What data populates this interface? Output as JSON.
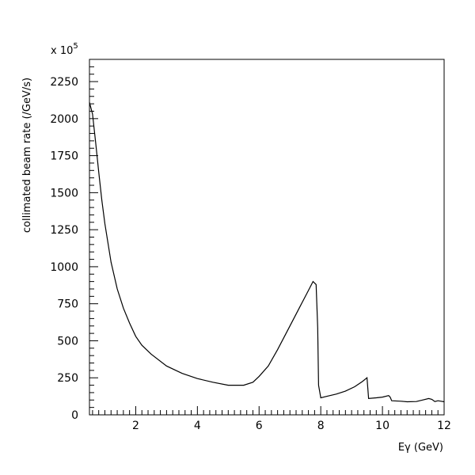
{
  "chart_data": {
    "type": "line",
    "title": "",
    "xlabel": "Eγ (GeV)",
    "ylabel": "collimated beam rate (/GeV/s)",
    "y_multiplier": "x 10",
    "y_multiplier_exp": "5",
    "xlim": [
      0.5,
      12
    ],
    "ylim": [
      0,
      2400
    ],
    "grid": false,
    "x_ticks": [
      {
        "value": 2,
        "label": "2"
      },
      {
        "value": 4,
        "label": "4"
      },
      {
        "value": 6,
        "label": "6"
      },
      {
        "value": 8,
        "label": "8"
      },
      {
        "value": 10,
        "label": "10"
      },
      {
        "value": 12,
        "label": "12"
      }
    ],
    "y_ticks": [
      {
        "value": 0,
        "label": "0"
      },
      {
        "value": 250,
        "label": "250"
      },
      {
        "value": 500,
        "label": "500"
      },
      {
        "value": 750,
        "label": "750"
      },
      {
        "value": 1000,
        "label": "1000"
      },
      {
        "value": 1250,
        "label": "1250"
      },
      {
        "value": 1500,
        "label": "1500"
      },
      {
        "value": 1750,
        "label": "1750"
      },
      {
        "value": 2000,
        "label": "2000"
      },
      {
        "value": 2250,
        "label": "2250"
      }
    ],
    "series": [
      {
        "points": [
          [
            0.5,
            2110
          ],
          [
            0.6,
            2030
          ],
          [
            0.7,
            1840
          ],
          [
            0.8,
            1640
          ],
          [
            0.9,
            1450
          ],
          [
            1.0,
            1290
          ],
          [
            1.2,
            1030
          ],
          [
            1.4,
            850
          ],
          [
            1.6,
            720
          ],
          [
            1.8,
            620
          ],
          [
            2.0,
            530
          ],
          [
            2.2,
            470
          ],
          [
            2.5,
            410
          ],
          [
            3.0,
            330
          ],
          [
            3.5,
            280
          ],
          [
            4.0,
            245
          ],
          [
            4.5,
            220
          ],
          [
            5.0,
            200
          ],
          [
            5.5,
            200
          ],
          [
            5.8,
            220
          ],
          [
            6.0,
            260
          ],
          [
            6.3,
            330
          ],
          [
            6.6,
            440
          ],
          [
            7.0,
            600
          ],
          [
            7.3,
            720
          ],
          [
            7.6,
            840
          ],
          [
            7.75,
            900
          ],
          [
            7.85,
            880
          ],
          [
            7.9,
            590
          ],
          [
            7.93,
            200
          ],
          [
            8.0,
            115
          ],
          [
            8.2,
            125
          ],
          [
            8.5,
            140
          ],
          [
            8.8,
            160
          ],
          [
            9.1,
            190
          ],
          [
            9.35,
            225
          ],
          [
            9.5,
            250
          ],
          [
            9.55,
            110
          ],
          [
            9.8,
            115
          ],
          [
            10.0,
            120
          ],
          [
            10.2,
            130
          ],
          [
            10.25,
            120
          ],
          [
            10.3,
            95
          ],
          [
            10.6,
            92
          ],
          [
            10.8,
            88
          ],
          [
            11.1,
            90
          ],
          [
            11.3,
            100
          ],
          [
            11.5,
            110
          ],
          [
            11.6,
            105
          ],
          [
            11.7,
            90
          ],
          [
            11.8,
            95
          ],
          [
            11.9,
            92
          ],
          [
            12.0,
            88
          ]
        ]
      }
    ]
  }
}
